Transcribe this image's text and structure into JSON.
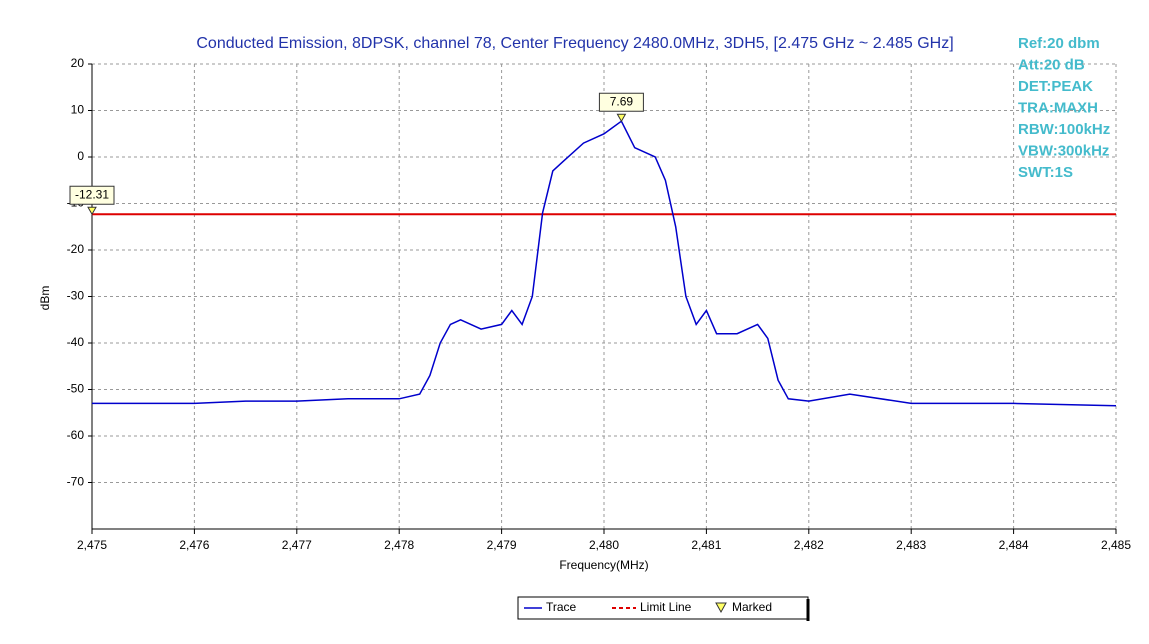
{
  "chart_data": {
    "type": "line",
    "title": "Conducted Emission, 8DPSK, channel 78, Center Frequency 2480.0MHz, 3DH5, [2.475 GHz ~ 2.485 GHz]",
    "xlabel": "Frequency(MHz)",
    "ylabel": "dBm",
    "info": [
      "Ref:20 dbm",
      "Att:20 dB",
      "DET:PEAK",
      "TRA:MAXH",
      "RBW:100kHz",
      "VBW:300kHz",
      "SWT:1S"
    ],
    "x": [
      2475.0,
      2475.5,
      2476.0,
      2476.5,
      2477.0,
      2477.5,
      2478.0,
      2478.2,
      2478.3,
      2478.4,
      2478.5,
      2478.6,
      2478.8,
      2479.0,
      2479.1,
      2479.2,
      2479.3,
      2479.4,
      2479.5,
      2479.6,
      2479.8,
      2480.0,
      2480.17,
      2480.3,
      2480.5,
      2480.6,
      2480.7,
      2480.8,
      2480.9,
      2481.0,
      2481.1,
      2481.3,
      2481.5,
      2481.6,
      2481.7,
      2481.8,
      2482.0,
      2482.4,
      2483.0,
      2484.0,
      2485.0
    ],
    "series": [
      {
        "name": "Trace",
        "color": "#0000cc",
        "values": [
          -53,
          -53,
          -53,
          -52.5,
          -52.5,
          -52,
          -52,
          -51,
          -47,
          -40,
          -36,
          -35,
          -37,
          -36,
          -33,
          -36,
          -30,
          -12,
          -3,
          -1,
          3,
          5,
          7.69,
          2,
          0,
          -5,
          -15,
          -30,
          -36,
          -33,
          -38,
          -38,
          -36,
          -39,
          -48,
          -52,
          -52.5,
          -51,
          -53,
          -53,
          -53.5
        ]
      }
    ],
    "limit_line": {
      "name": "Limit Line",
      "value": -12.31,
      "color": "#dd0000"
    },
    "marker_legend": "Marked",
    "marker_color": "#ffff66",
    "markers": [
      {
        "x": 2480.17,
        "y": 7.69
      },
      {
        "x": 2475.0,
        "y": -12.31
      }
    ],
    "xlim": [
      2475,
      2485
    ],
    "xticks": [
      {
        "value": 2475,
        "label": "2,475"
      },
      {
        "value": 2476,
        "label": "2,476"
      },
      {
        "value": 2477,
        "label": "2,477"
      },
      {
        "value": 2478,
        "label": "2,478"
      },
      {
        "value": 2479,
        "label": "2,479"
      },
      {
        "value": 2480,
        "label": "2,480"
      },
      {
        "value": 2481,
        "label": "2,481"
      },
      {
        "value": 2482,
        "label": "2,482"
      },
      {
        "value": 2483,
        "label": "2,483"
      },
      {
        "value": 2484,
        "label": "2,484"
      },
      {
        "value": 2485,
        "label": "2,485"
      }
    ],
    "ylim": [
      -80,
      20
    ],
    "yticks": [
      -70,
      -60,
      -50,
      -40,
      -30,
      -20,
      -10,
      0,
      10,
      20
    ],
    "grid": true
  }
}
